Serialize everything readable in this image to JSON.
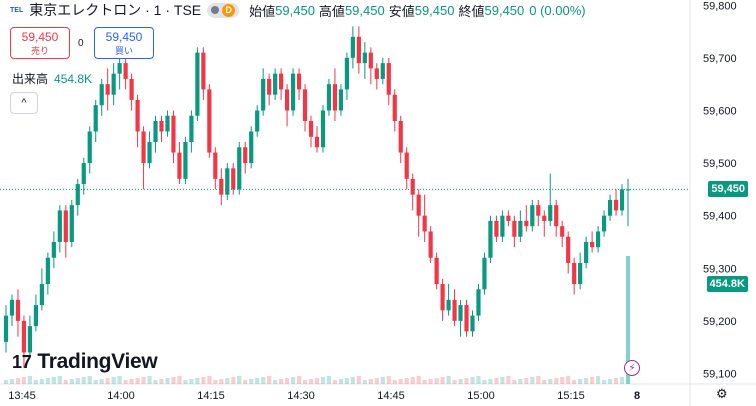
{
  "header": {
    "exchange_icon_text": "TEL",
    "symbol": "東京エレクトロン · 1 · TSE",
    "pill_badge": "D",
    "open_label": "始値",
    "open_value": "59,450",
    "high_label": "高値",
    "high_value": "59,450",
    "low_label": "安値",
    "low_value": "59,450",
    "close_label": "終値",
    "close_value": "59,450",
    "change": "0 (0.00%)"
  },
  "trade": {
    "sell_price": "59,450",
    "sell_label": "売り",
    "spread": "0",
    "buy_price": "59,450",
    "buy_label": "買い"
  },
  "volume_legend": {
    "label": "出来高",
    "value": "454.8K"
  },
  "collapse_icon": "^",
  "logo": {
    "mark": "17",
    "text": "TradingView"
  },
  "price_tag": "59,450",
  "volume_tag": "454.8K",
  "colors": {
    "up": "#089981",
    "down": "#f23645",
    "volume": "#7fd3c8",
    "last_line": "#089981"
  },
  "chart_data": {
    "type": "candlestick",
    "y_ticks": [
      "59,800",
      "59,700",
      "59,600",
      "59,500",
      "59,400",
      "59,300",
      "59,200",
      "59,100"
    ],
    "x_ticks": [
      "13:45",
      "14:00",
      "14:15",
      "14:30",
      "14:45",
      "15:00",
      "15:15",
      "8"
    ],
    "ylim": [
      59080,
      59810
    ],
    "last_price": 59450,
    "last_volume": 454800,
    "candles": [
      [
        59160,
        59210,
        59140,
        59230
      ],
      [
        59210,
        59240,
        59190,
        59250
      ],
      [
        59240,
        59200,
        59170,
        59260
      ],
      [
        59200,
        59140,
        59110,
        59210
      ],
      [
        59140,
        59190,
        59130,
        59210
      ],
      [
        59190,
        59230,
        59180,
        59250
      ],
      [
        59230,
        59270,
        59220,
        59300
      ],
      [
        59270,
        59320,
        59250,
        59330
      ],
      [
        59320,
        59350,
        59300,
        59370
      ],
      [
        59350,
        59410,
        59330,
        59420
      ],
      [
        59410,
        59350,
        59320,
        59420
      ],
      [
        59350,
        59420,
        59340,
        59430
      ],
      [
        59420,
        59460,
        59400,
        59470
      ],
      [
        59460,
        59500,
        59440,
        59510
      ],
      [
        59500,
        59560,
        59480,
        59570
      ],
      [
        59560,
        59610,
        59540,
        59620
      ],
      [
        59610,
        59650,
        59590,
        59660
      ],
      [
        59650,
        59630,
        59600,
        59680
      ],
      [
        59630,
        59670,
        59610,
        59690
      ],
      [
        59670,
        59690,
        59640,
        59720
      ],
      [
        59690,
        59660,
        59640,
        59710
      ],
      [
        59660,
        59620,
        59600,
        59670
      ],
      [
        59620,
        59560,
        59530,
        59630
      ],
      [
        59560,
        59500,
        59450,
        59570
      ],
      [
        59500,
        59540,
        59490,
        59560
      ],
      [
        59540,
        59580,
        59520,
        59590
      ],
      [
        59580,
        59560,
        59540,
        59590
      ],
      [
        59560,
        59590,
        59550,
        59600
      ],
      [
        59590,
        59520,
        59500,
        59600
      ],
      [
        59520,
        59470,
        59460,
        59540
      ],
      [
        59470,
        59540,
        59460,
        59550
      ],
      [
        59540,
        59590,
        59520,
        59600
      ],
      [
        59590,
        59710,
        59580,
        59720
      ],
      [
        59710,
        59640,
        59620,
        59720
      ],
      [
        59640,
        59520,
        59510,
        59650
      ],
      [
        59520,
        59470,
        59450,
        59530
      ],
      [
        59470,
        59440,
        59420,
        59490
      ],
      [
        59440,
        59490,
        59430,
        59500
      ],
      [
        59490,
        59450,
        59440,
        59500
      ],
      [
        59450,
        59530,
        59440,
        59540
      ],
      [
        59530,
        59500,
        59480,
        59540
      ],
      [
        59500,
        59560,
        59490,
        59570
      ],
      [
        59560,
        59600,
        59550,
        59610
      ],
      [
        59600,
        59660,
        59590,
        59680
      ],
      [
        59660,
        59630,
        59610,
        59670
      ],
      [
        59630,
        59670,
        59620,
        59680
      ],
      [
        59670,
        59640,
        59620,
        59680
      ],
      [
        59640,
        59600,
        59570,
        59650
      ],
      [
        59600,
        59670,
        59590,
        59680
      ],
      [
        59670,
        59640,
        59620,
        59680
      ],
      [
        59640,
        59580,
        59560,
        59650
      ],
      [
        59580,
        59550,
        59530,
        59590
      ],
      [
        59550,
        59530,
        59520,
        59570
      ],
      [
        59530,
        59600,
        59520,
        59610
      ],
      [
        59600,
        59650,
        59590,
        59660
      ],
      [
        59650,
        59600,
        59580,
        59680
      ],
      [
        59600,
        59640,
        59590,
        59650
      ],
      [
        59640,
        59700,
        59620,
        59710
      ],
      [
        59700,
        59740,
        59680,
        59760
      ],
      [
        59740,
        59690,
        59670,
        59760
      ],
      [
        59690,
        59710,
        59660,
        59730
      ],
      [
        59710,
        59680,
        59650,
        59720
      ],
      [
        59680,
        59660,
        59640,
        59690
      ],
      [
        59660,
        59690,
        59650,
        59700
      ],
      [
        59690,
        59630,
        59610,
        59700
      ],
      [
        59630,
        59580,
        59560,
        59640
      ],
      [
        59580,
        59520,
        59500,
        59590
      ],
      [
        59520,
        59470,
        59450,
        59530
      ],
      [
        59470,
        59440,
        59410,
        59480
      ],
      [
        59440,
        59400,
        59360,
        59450
      ],
      [
        59400,
        59370,
        59350,
        59440
      ],
      [
        59370,
        59320,
        59310,
        59380
      ],
      [
        59320,
        59270,
        59260,
        59330
      ],
      [
        59270,
        59220,
        59200,
        59280
      ],
      [
        59220,
        59240,
        59210,
        59270
      ],
      [
        59240,
        59200,
        59190,
        59260
      ],
      [
        59200,
        59230,
        59170,
        59240
      ],
      [
        59230,
        59180,
        59170,
        59240
      ],
      [
        59180,
        59210,
        59170,
        59220
      ],
      [
        59210,
        59260,
        59200,
        59270
      ],
      [
        59260,
        59320,
        59250,
        59330
      ],
      [
        59320,
        59390,
        59310,
        59400
      ],
      [
        59390,
        59360,
        59350,
        59400
      ],
      [
        59360,
        59400,
        59350,
        59410
      ],
      [
        59400,
        59390,
        59380,
        59410
      ],
      [
        59390,
        59360,
        59340,
        59400
      ],
      [
        59360,
        59390,
        59350,
        59410
      ],
      [
        59390,
        59380,
        59370,
        59420
      ],
      [
        59380,
        59420,
        59370,
        59430
      ],
      [
        59420,
        59400,
        59380,
        59430
      ],
      [
        59400,
        59390,
        59360,
        59410
      ],
      [
        59390,
        59420,
        59380,
        59480
      ],
      [
        59420,
        59380,
        59360,
        59430
      ],
      [
        59380,
        59360,
        59340,
        59390
      ],
      [
        59360,
        59310,
        59290,
        59370
      ],
      [
        59310,
        59270,
        59250,
        59320
      ],
      [
        59270,
        59310,
        59260,
        59330
      ],
      [
        59310,
        59350,
        59300,
        59360
      ],
      [
        59350,
        59340,
        59330,
        59370
      ],
      [
        59340,
        59370,
        59330,
        59380
      ],
      [
        59370,
        59400,
        59360,
        59410
      ],
      [
        59400,
        59430,
        59390,
        59440
      ],
      [
        59430,
        59410,
        59400,
        59450
      ],
      [
        59410,
        59450,
        59400,
        59460
      ],
      [
        59450,
        59450,
        59380,
        59470
      ]
    ]
  }
}
